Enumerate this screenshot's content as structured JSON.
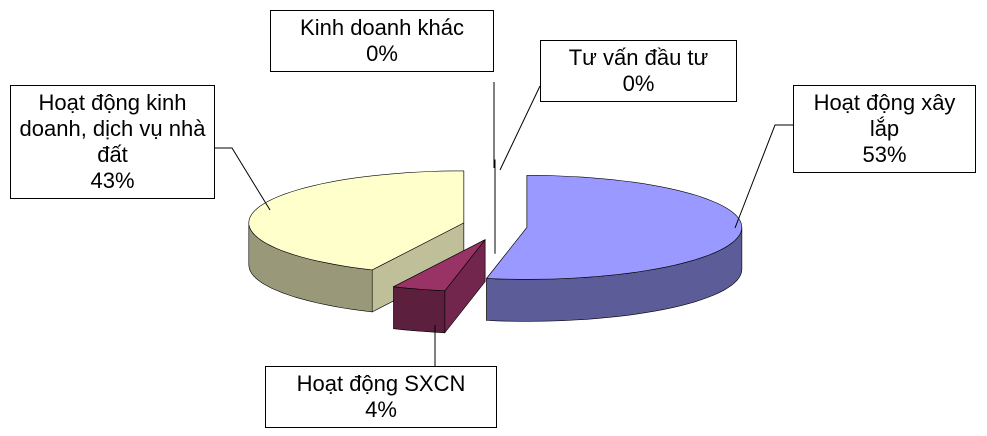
{
  "chart_data": {
    "type": "pie3d",
    "categories": [
      "Hoạt động xây lắp",
      "Hoạt động SXCN",
      "Hoạt động kinh doanh, dịch vụ nhà đất",
      "Kinh doanh khác",
      "Tư vấn đầu tư"
    ],
    "values": [
      53,
      4,
      43,
      0,
      0
    ],
    "value_labels": [
      "53%",
      "4%",
      "43%",
      "0%",
      "0%"
    ],
    "colors": [
      "#9999ff",
      "#993366",
      "#ffffcc",
      "#33aaaa",
      "#cc3377"
    ]
  }
}
